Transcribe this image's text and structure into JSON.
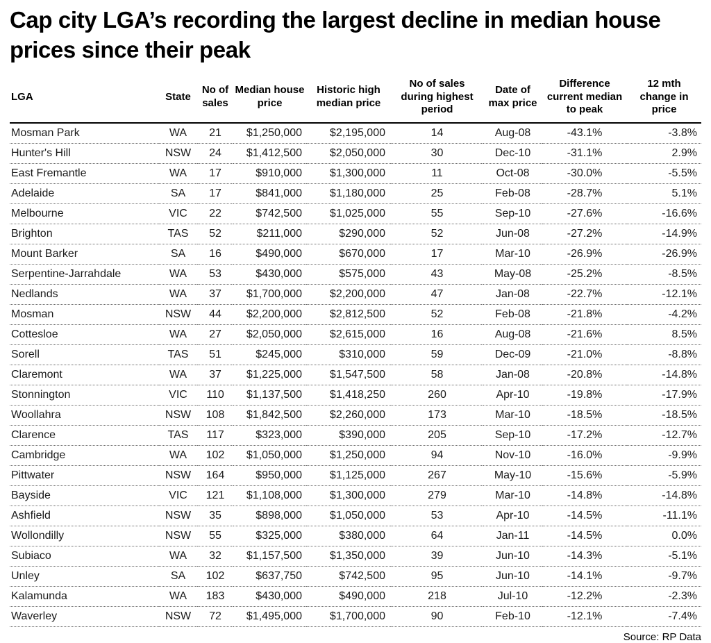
{
  "title": "Cap city LGA’s recording the largest decline in median house prices since their peak",
  "source": "Source: RP Data",
  "chart_data": {
    "type": "table",
    "title": "Cap city LGA’s recording the largest decline in median house prices since their peak",
    "source": "Source: RP Data",
    "columns": [
      "LGA",
      "State",
      "No of sales",
      "Median house price",
      "Historic high median price",
      "No of sales during highest period",
      "Date of max price",
      "Difference current median to peak",
      "12 mth change in price"
    ],
    "rows": [
      [
        "Mosman Park",
        "WA",
        "21",
        "$1,250,000",
        "$2,195,000",
        "14",
        "Aug-08",
        "-43.1%",
        "-3.8%"
      ],
      [
        "Hunter's Hill",
        "NSW",
        "24",
        "$1,412,500",
        "$2,050,000",
        "30",
        "Dec-10",
        "-31.1%",
        "2.9%"
      ],
      [
        "East Fremantle",
        "WA",
        "17",
        "$910,000",
        "$1,300,000",
        "11",
        "Oct-08",
        "-30.0%",
        "-5.5%"
      ],
      [
        "Adelaide",
        "SA",
        "17",
        "$841,000",
        "$1,180,000",
        "25",
        "Feb-08",
        "-28.7%",
        "5.1%"
      ],
      [
        "Melbourne",
        "VIC",
        "22",
        "$742,500",
        "$1,025,000",
        "55",
        "Sep-10",
        "-27.6%",
        "-16.6%"
      ],
      [
        "Brighton",
        "TAS",
        "52",
        "$211,000",
        "$290,000",
        "52",
        "Jun-08",
        "-27.2%",
        "-14.9%"
      ],
      [
        "Mount Barker",
        "SA",
        "16",
        "$490,000",
        "$670,000",
        "17",
        "Mar-10",
        "-26.9%",
        "-26.9%"
      ],
      [
        "Serpentine-Jarrahdale",
        "WA",
        "53",
        "$430,000",
        "$575,000",
        "43",
        "May-08",
        "-25.2%",
        "-8.5%"
      ],
      [
        "Nedlands",
        "WA",
        "37",
        "$1,700,000",
        "$2,200,000",
        "47",
        "Jan-08",
        "-22.7%",
        "-12.1%"
      ],
      [
        "Mosman",
        "NSW",
        "44",
        "$2,200,000",
        "$2,812,500",
        "52",
        "Feb-08",
        "-21.8%",
        "-4.2%"
      ],
      [
        "Cottesloe",
        "WA",
        "27",
        "$2,050,000",
        "$2,615,000",
        "16",
        "Aug-08",
        "-21.6%",
        "8.5%"
      ],
      [
        "Sorell",
        "TAS",
        "51",
        "$245,000",
        "$310,000",
        "59",
        "Dec-09",
        "-21.0%",
        "-8.8%"
      ],
      [
        "Claremont",
        "WA",
        "37",
        "$1,225,000",
        "$1,547,500",
        "58",
        "Jan-08",
        "-20.8%",
        "-14.8%"
      ],
      [
        "Stonnington",
        "VIC",
        "110",
        "$1,137,500",
        "$1,418,250",
        "260",
        "Apr-10",
        "-19.8%",
        "-17.9%"
      ],
      [
        "Woollahra",
        "NSW",
        "108",
        "$1,842,500",
        "$2,260,000",
        "173",
        "Mar-10",
        "-18.5%",
        "-18.5%"
      ],
      [
        "Clarence",
        "TAS",
        "117",
        "$323,000",
        "$390,000",
        "205",
        "Sep-10",
        "-17.2%",
        "-12.7%"
      ],
      [
        "Cambridge",
        "WA",
        "102",
        "$1,050,000",
        "$1,250,000",
        "94",
        "Nov-10",
        "-16.0%",
        "-9.9%"
      ],
      [
        "Pittwater",
        "NSW",
        "164",
        "$950,000",
        "$1,125,000",
        "267",
        "May-10",
        "-15.6%",
        "-5.9%"
      ],
      [
        "Bayside",
        "VIC",
        "121",
        "$1,108,000",
        "$1,300,000",
        "279",
        "Mar-10",
        "-14.8%",
        "-14.8%"
      ],
      [
        "Ashfield",
        "NSW",
        "35",
        "$898,000",
        "$1,050,000",
        "53",
        "Apr-10",
        "-14.5%",
        "-11.1%"
      ],
      [
        "Wollondilly",
        "NSW",
        "55",
        "$325,000",
        "$380,000",
        "64",
        "Jan-11",
        "-14.5%",
        "0.0%"
      ],
      [
        "Subiaco",
        "WA",
        "32",
        "$1,157,500",
        "$1,350,000",
        "39",
        "Jun-10",
        "-14.3%",
        "-5.1%"
      ],
      [
        "Unley",
        "SA",
        "102",
        "$637,750",
        "$742,500",
        "95",
        "Jun-10",
        "-14.1%",
        "-9.7%"
      ],
      [
        "Kalamunda",
        "WA",
        "183",
        "$430,000",
        "$490,000",
        "218",
        "Jul-10",
        "-12.2%",
        "-2.3%"
      ],
      [
        "Waverley",
        "NSW",
        "72",
        "$1,495,000",
        "$1,700,000",
        "90",
        "Feb-10",
        "-12.1%",
        "-7.4%"
      ]
    ]
  }
}
